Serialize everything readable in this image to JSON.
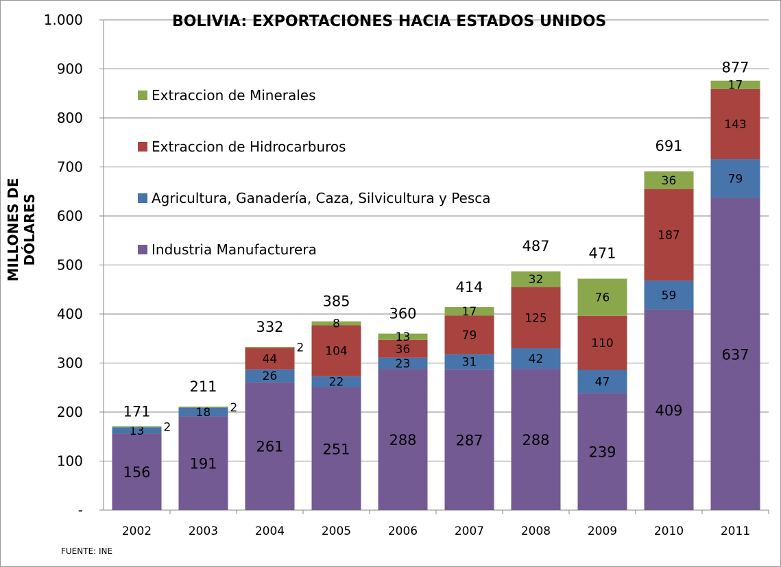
{
  "chart_data": {
    "type": "bar",
    "stacked": true,
    "title": "BOLIVIA: EXPORTACIONES HACIA ESTADOS UNIDOS",
    "ylabel": "MILLONES DE DÓLARES",
    "xlabel": "",
    "source": "FUENTE: INE",
    "ylim": [
      0,
      1000
    ],
    "yticks": [
      "-",
      "100",
      "200",
      "300",
      "400",
      "500",
      "600",
      "700",
      "800",
      "900",
      "1.000"
    ],
    "grid": true,
    "legend_position": "top-left",
    "categories": [
      "2002",
      "2003",
      "2004",
      "2005",
      "2006",
      "2007",
      "2008",
      "2009",
      "2010",
      "2011"
    ],
    "series": [
      {
        "name": "Industria Manufacturera",
        "color": "#735a93",
        "values": [
          156,
          191,
          261,
          251,
          288,
          287,
          288,
          239,
          409,
          637
        ]
      },
      {
        "name": "Agricultura, Ganadería, Caza, Silvicultura y Pesca",
        "color": "#4674ab",
        "values": [
          13,
          18,
          26,
          22,
          23,
          31,
          42,
          47,
          59,
          79
        ]
      },
      {
        "name": "Extraccion de Hidrocarburos",
        "color": "#a9433f",
        "values": [
          0,
          0,
          44,
          104,
          36,
          79,
          125,
          110,
          187,
          143
        ]
      },
      {
        "name": "Extraccion de Minerales",
        "color": "#8aa74b",
        "values": [
          2,
          2,
          2,
          8,
          13,
          17,
          32,
          76,
          36,
          17
        ]
      }
    ],
    "totals": [
      171,
      211,
      332,
      385,
      360,
      414,
      487,
      471,
      691,
      877
    ]
  }
}
